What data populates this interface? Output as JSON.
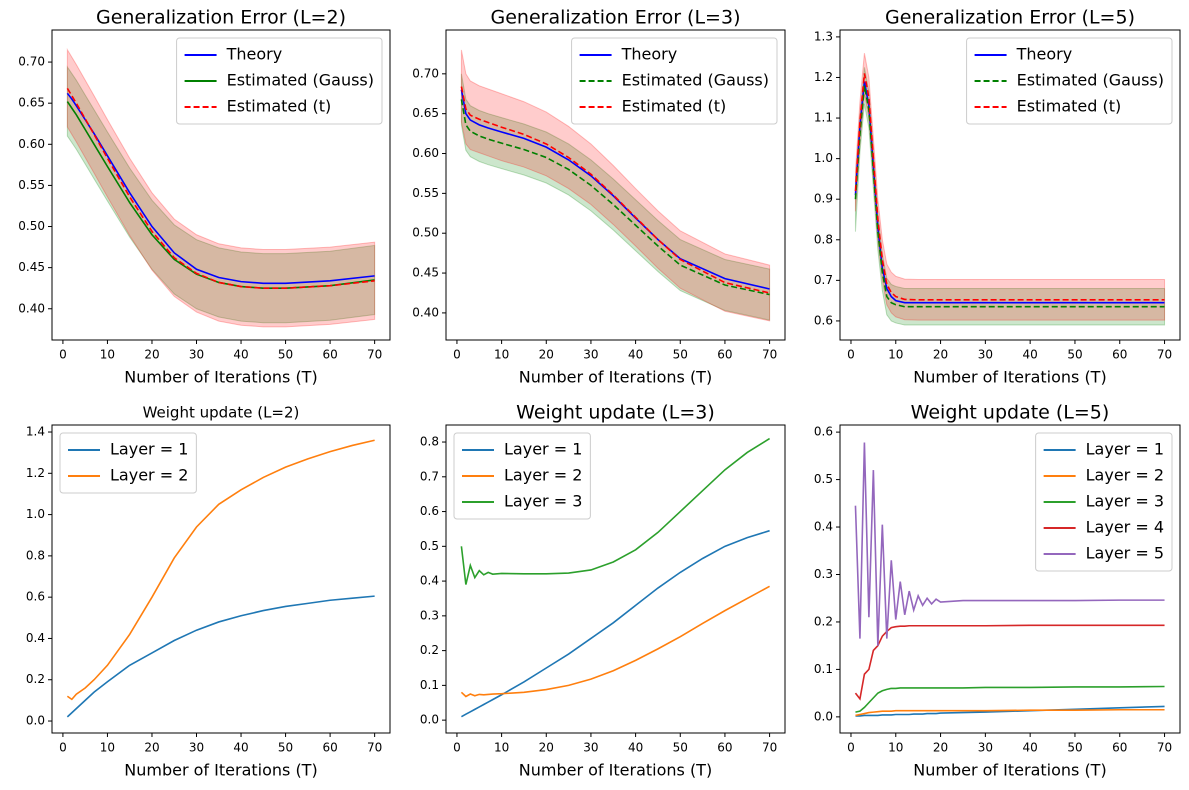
{
  "chart_data": [
    {
      "type": "line",
      "title": "Generalization Error (L=2)",
      "x_label": "Number of Iterations (T)",
      "x": [
        1,
        2,
        3,
        5,
        7,
        10,
        15,
        20,
        25,
        30,
        35,
        40,
        45,
        50,
        60,
        70
      ],
      "series": [
        {
          "name": "Theory",
          "color": "#0000ff",
          "dash": false,
          "values": [
            0.662,
            0.655,
            0.647,
            0.63,
            0.613,
            0.586,
            0.541,
            0.5,
            0.468,
            0.448,
            0.438,
            0.433,
            0.431,
            0.431,
            0.434,
            0.44
          ]
        },
        {
          "name": "Estimated (Gauss)",
          "color": "#008000",
          "dash": false,
          "values": [
            0.652,
            0.644,
            0.636,
            0.618,
            0.6,
            0.573,
            0.529,
            0.49,
            0.46,
            0.442,
            0.432,
            0.427,
            0.425,
            0.425,
            0.428,
            0.435
          ],
          "upper": [
            0.694,
            0.686,
            0.678,
            0.66,
            0.642,
            0.615,
            0.571,
            0.532,
            0.502,
            0.484,
            0.474,
            0.469,
            0.467,
            0.467,
            0.47,
            0.477
          ],
          "lower": [
            0.61,
            0.602,
            0.594,
            0.576,
            0.558,
            0.531,
            0.487,
            0.448,
            0.418,
            0.4,
            0.39,
            0.385,
            0.383,
            0.383,
            0.386,
            0.393
          ]
        },
        {
          "name": "Estimated (t)",
          "color": "#ff0000",
          "dash": true,
          "values": [
            0.668,
            0.659,
            0.65,
            0.631,
            0.612,
            0.583,
            0.536,
            0.494,
            0.462,
            0.443,
            0.432,
            0.427,
            0.425,
            0.425,
            0.428,
            0.434
          ],
          "upper": [
            0.715,
            0.706,
            0.697,
            0.678,
            0.659,
            0.63,
            0.583,
            0.541,
            0.509,
            0.49,
            0.479,
            0.474,
            0.472,
            0.472,
            0.475,
            0.481
          ],
          "lower": [
            0.621,
            0.612,
            0.603,
            0.584,
            0.565,
            0.536,
            0.489,
            0.447,
            0.415,
            0.396,
            0.385,
            0.38,
            0.378,
            0.378,
            0.381,
            0.387
          ]
        }
      ],
      "xlim": [
        -2.45,
        73.45
      ],
      "xticks": [
        0,
        10,
        20,
        30,
        40,
        50,
        60,
        70
      ],
      "ylim": [
        0.362,
        0.739
      ],
      "yticks": [
        {
          "value": 0.4,
          "label": "0.40"
        },
        0.45,
        {
          "value": 0.5,
          "label": "0.50"
        },
        0.55,
        {
          "value": 0.6,
          "label": "0.60"
        },
        0.65,
        {
          "value": 0.7,
          "label": "0.70"
        }
      ],
      "legend": "upper right"
    },
    {
      "type": "line",
      "title": "Generalization Error (L=3)",
      "x_label": "Number of Iterations (T)",
      "x": [
        1,
        2,
        3,
        5,
        7,
        10,
        15,
        20,
        25,
        30,
        35,
        40,
        45,
        50,
        60,
        70
      ],
      "series": [
        {
          "name": "Theory",
          "color": "#0000ff",
          "dash": false,
          "values": [
            0.68,
            0.65,
            0.642,
            0.636,
            0.632,
            0.627,
            0.619,
            0.608,
            0.592,
            0.572,
            0.547,
            0.519,
            0.492,
            0.468,
            0.443,
            0.43
          ]
        },
        {
          "name": "Estimated (Gauss)",
          "color": "#008000",
          "dash": true,
          "values": [
            0.668,
            0.636,
            0.628,
            0.622,
            0.618,
            0.613,
            0.605,
            0.595,
            0.58,
            0.56,
            0.536,
            0.51,
            0.484,
            0.46,
            0.435,
            0.423
          ],
          "upper": [
            0.7,
            0.668,
            0.66,
            0.654,
            0.65,
            0.645,
            0.637,
            0.627,
            0.612,
            0.592,
            0.568,
            0.542,
            0.516,
            0.492,
            0.467,
            0.455
          ],
          "lower": [
            0.636,
            0.604,
            0.596,
            0.59,
            0.586,
            0.581,
            0.573,
            0.563,
            0.548,
            0.528,
            0.504,
            0.478,
            0.452,
            0.428,
            0.403,
            0.391
          ]
        },
        {
          "name": "Estimated (t)",
          "color": "#ff0000",
          "dash": true,
          "values": [
            0.684,
            0.656,
            0.648,
            0.643,
            0.639,
            0.633,
            0.624,
            0.612,
            0.595,
            0.574,
            0.548,
            0.52,
            0.492,
            0.467,
            0.438,
            0.425
          ],
          "upper": [
            0.73,
            0.7,
            0.691,
            0.685,
            0.681,
            0.675,
            0.665,
            0.652,
            0.634,
            0.612,
            0.585,
            0.556,
            0.528,
            0.503,
            0.474,
            0.46
          ],
          "lower": [
            0.64,
            0.612,
            0.605,
            0.601,
            0.597,
            0.591,
            0.583,
            0.572,
            0.556,
            0.536,
            0.511,
            0.484,
            0.456,
            0.431,
            0.402,
            0.39
          ]
        }
      ],
      "xlim": [
        -2.45,
        73.45
      ],
      "xticks": [
        0,
        10,
        20,
        30,
        40,
        50,
        60,
        70
      ],
      "ylim": [
        0.366,
        0.755
      ],
      "yticks": [
        {
          "value": 0.4,
          "label": "0.40"
        },
        0.45,
        {
          "value": 0.5,
          "label": "0.50"
        },
        0.55,
        {
          "value": 0.6,
          "label": "0.60"
        },
        0.65,
        {
          "value": 0.7,
          "label": "0.70"
        }
      ],
      "legend": "upper right"
    },
    {
      "type": "line",
      "title": "Generalization Error (L=5)",
      "x_label": "Number of Iterations (T)",
      "x": [
        1,
        2,
        3,
        4,
        5,
        6,
        7,
        8,
        9,
        10,
        12,
        15,
        20,
        30,
        40,
        50,
        60,
        70
      ],
      "series": [
        {
          "name": "Theory",
          "color": "#0000ff",
          "dash": false,
          "values": [
            0.91,
            1.08,
            1.19,
            1.13,
            0.98,
            0.83,
            0.73,
            0.68,
            0.66,
            0.65,
            0.645,
            0.645,
            0.645,
            0.645,
            0.645,
            0.645,
            0.645,
            0.645
          ]
        },
        {
          "name": "Estimated (Gauss)",
          "color": "#008000",
          "dash": true,
          "values": [
            0.9,
            1.06,
            1.18,
            1.12,
            0.97,
            0.82,
            0.72,
            0.66,
            0.645,
            0.64,
            0.635,
            0.635,
            0.635,
            0.635,
            0.635,
            0.635,
            0.635,
            0.635
          ],
          "upper": [
            0.945,
            1.105,
            1.225,
            1.165,
            1.015,
            0.865,
            0.765,
            0.705,
            0.69,
            0.685,
            0.68,
            0.68,
            0.68,
            0.68,
            0.68,
            0.68,
            0.68,
            0.68
          ],
          "lower": [
            0.82,
            1.015,
            1.135,
            1.075,
            0.925,
            0.775,
            0.675,
            0.615,
            0.6,
            0.595,
            0.59,
            0.59,
            0.59,
            0.59,
            0.59,
            0.59,
            0.59,
            0.59
          ]
        },
        {
          "name": "Estimated (t)",
          "color": "#ff0000",
          "dash": true,
          "values": [
            0.92,
            1.09,
            1.21,
            1.15,
            1.0,
            0.85,
            0.75,
            0.69,
            0.67,
            0.66,
            0.653,
            0.652,
            0.652,
            0.652,
            0.652,
            0.652,
            0.652,
            0.652
          ],
          "upper": [
            0.97,
            1.14,
            1.26,
            1.2,
            1.05,
            0.9,
            0.8,
            0.74,
            0.72,
            0.71,
            0.703,
            0.702,
            0.702,
            0.702,
            0.702,
            0.702,
            0.702,
            0.702
          ],
          "lower": [
            0.87,
            1.04,
            1.16,
            1.1,
            0.95,
            0.8,
            0.7,
            0.64,
            0.62,
            0.61,
            0.603,
            0.602,
            0.602,
            0.602,
            0.602,
            0.602,
            0.602,
            0.602
          ]
        }
      ],
      "xlim": [
        -2.45,
        73.45
      ],
      "xticks": [
        0,
        10,
        20,
        30,
        40,
        50,
        60,
        70
      ],
      "ylim": [
        0.553,
        1.317
      ],
      "yticks": [
        0.6,
        0.7,
        0.8,
        0.9,
        {
          "value": 1,
          "label": "1.0"
        },
        1.1,
        1.2,
        1.3
      ],
      "legend": "upper right"
    },
    {
      "type": "line",
      "title": "Weight update (L=2)",
      "x_label": "Number of Iterations (T)",
      "x": [
        1,
        2,
        3,
        5,
        7,
        10,
        15,
        20,
        25,
        30,
        35,
        40,
        45,
        50,
        55,
        60,
        65,
        70
      ],
      "series": [
        {
          "name": "Layer = 1",
          "color": "#1f77b4",
          "dash": false,
          "values": [
            0.02,
            0.04,
            0.06,
            0.1,
            0.14,
            0.19,
            0.27,
            0.33,
            0.39,
            0.44,
            0.48,
            0.51,
            0.535,
            0.555,
            0.57,
            0.585,
            0.595,
            0.605
          ]
        },
        {
          "name": "Layer = 2",
          "color": "#ff7f0e",
          "dash": false,
          "values": [
            0.12,
            0.105,
            0.13,
            0.16,
            0.2,
            0.27,
            0.42,
            0.6,
            0.79,
            0.94,
            1.05,
            1.12,
            1.18,
            1.23,
            1.27,
            1.305,
            1.335,
            1.36
          ]
        }
      ],
      "xlim": [
        -2.45,
        73.45
      ],
      "xticks": [
        0,
        10,
        20,
        30,
        40,
        50,
        60,
        70
      ],
      "ylim": [
        -0.058,
        1.434
      ],
      "yticks": [
        {
          "value": 0,
          "label": "0.0"
        },
        0.2,
        0.4,
        0.6,
        0.8,
        {
          "value": 1,
          "label": "1.0"
        },
        1.2,
        1.4
      ],
      "legend": "upper left"
    },
    {
      "type": "line",
      "title": "Weight update (L=3)",
      "x_label": "Number of Iterations (T)",
      "x": [
        1,
        2,
        3,
        4,
        5,
        6,
        7,
        8,
        10,
        15,
        20,
        25,
        30,
        35,
        40,
        45,
        50,
        55,
        60,
        65,
        70
      ],
      "series": [
        {
          "name": "Layer = 1",
          "color": "#1f77b4",
          "dash": false,
          "values": [
            0.01,
            0.017,
            0.024,
            0.031,
            0.038,
            0.045,
            0.052,
            0.059,
            0.073,
            0.11,
            0.15,
            0.19,
            0.235,
            0.28,
            0.33,
            0.38,
            0.425,
            0.465,
            0.5,
            0.525,
            0.545
          ]
        },
        {
          "name": "Layer = 2",
          "color": "#ff7f0e",
          "dash": false,
          "values": [
            0.08,
            0.068,
            0.075,
            0.07,
            0.074,
            0.073,
            0.074,
            0.075,
            0.076,
            0.08,
            0.088,
            0.1,
            0.118,
            0.142,
            0.172,
            0.205,
            0.24,
            0.278,
            0.315,
            0.35,
            0.385
          ]
        },
        {
          "name": "Layer = 3",
          "color": "#2ca02c",
          "dash": false,
          "values": [
            0.5,
            0.39,
            0.445,
            0.41,
            0.43,
            0.418,
            0.425,
            0.42,
            0.422,
            0.421,
            0.421,
            0.423,
            0.432,
            0.455,
            0.49,
            0.54,
            0.6,
            0.66,
            0.72,
            0.77,
            0.81
          ]
        }
      ],
      "xlim": [
        -2.45,
        73.45
      ],
      "xticks": [
        0,
        10,
        20,
        30,
        40,
        50,
        60,
        70
      ],
      "ylim": [
        -0.037,
        0.849
      ],
      "yticks": [
        {
          "value": 0,
          "label": "0.0"
        },
        0.1,
        0.2,
        0.3,
        0.4,
        0.5,
        0.6,
        0.7,
        0.8
      ],
      "legend": "upper left"
    },
    {
      "type": "line",
      "title": "Weight update (L=5)",
      "x_label": "Number of Iterations (T)",
      "x": [
        1,
        2,
        3,
        4,
        5,
        6,
        7,
        8,
        9,
        10,
        11,
        12,
        13,
        14,
        15,
        16,
        17,
        18,
        19,
        20,
        25,
        30,
        40,
        50,
        60,
        70
      ],
      "series": [
        {
          "name": "Layer = 1",
          "color": "#1f77b4",
          "dash": false,
          "values": [
            0.002,
            0.002,
            0.003,
            0.003,
            0.003,
            0.003,
            0.004,
            0.004,
            0.004,
            0.005,
            0.005,
            0.005,
            0.005,
            0.006,
            0.006,
            0.006,
            0.007,
            0.007,
            0.007,
            0.008,
            0.009,
            0.01,
            0.013,
            0.016,
            0.019,
            0.022
          ]
        },
        {
          "name": "Layer = 2",
          "color": "#ff7f0e",
          "dash": false,
          "values": [
            0.003,
            0.005,
            0.007,
            0.009,
            0.01,
            0.011,
            0.012,
            0.012,
            0.012,
            0.013,
            0.013,
            0.013,
            0.013,
            0.013,
            0.013,
            0.013,
            0.013,
            0.013,
            0.013,
            0.013,
            0.013,
            0.013,
            0.014,
            0.014,
            0.015,
            0.015
          ]
        },
        {
          "name": "Layer = 3",
          "color": "#2ca02c",
          "dash": false,
          "values": [
            0.01,
            0.012,
            0.02,
            0.03,
            0.04,
            0.05,
            0.055,
            0.058,
            0.06,
            0.06,
            0.061,
            0.061,
            0.061,
            0.061,
            0.061,
            0.061,
            0.061,
            0.061,
            0.061,
            0.061,
            0.061,
            0.062,
            0.062,
            0.063,
            0.063,
            0.064
          ]
        },
        {
          "name": "Layer = 4",
          "color": "#d62728",
          "dash": false,
          "values": [
            0.05,
            0.038,
            0.09,
            0.1,
            0.14,
            0.15,
            0.17,
            0.18,
            0.188,
            0.19,
            0.191,
            0.191,
            0.192,
            0.192,
            0.192,
            0.192,
            0.192,
            0.192,
            0.192,
            0.192,
            0.192,
            0.192,
            0.193,
            0.193,
            0.193,
            0.193
          ]
        },
        {
          "name": "Layer = 5",
          "color": "#9467bd",
          "dash": false,
          "values": [
            0.445,
            0.165,
            0.578,
            0.21,
            0.52,
            0.15,
            0.405,
            0.165,
            0.33,
            0.205,
            0.285,
            0.215,
            0.265,
            0.225,
            0.255,
            0.235,
            0.25,
            0.238,
            0.248,
            0.242,
            0.245,
            0.245,
            0.245,
            0.245,
            0.246,
            0.246
          ]
        }
      ],
      "xlim": [
        -2.45,
        73.45
      ],
      "xticks": [
        0,
        10,
        20,
        30,
        40,
        50,
        60,
        70
      ],
      "ylim": [
        -0.034,
        0.615
      ],
      "yticks": [
        {
          "value": 0,
          "label": "0.0"
        },
        0.1,
        0.2,
        0.3,
        0.4,
        0.5,
        0.6
      ],
      "legend": "upper right"
    }
  ]
}
